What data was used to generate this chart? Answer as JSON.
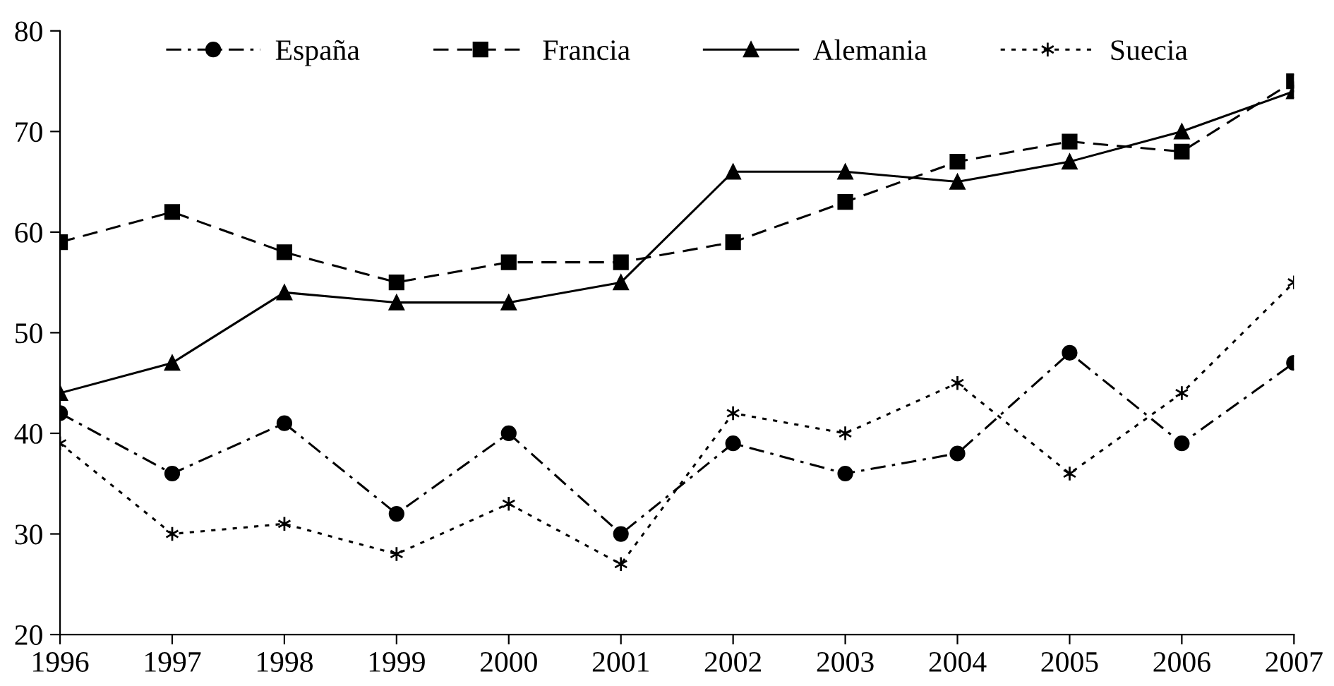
{
  "chart_data": {
    "type": "line",
    "x": [
      1996,
      1997,
      1998,
      1999,
      2000,
      2001,
      2002,
      2003,
      2004,
      2005,
      2006,
      2007
    ],
    "series": [
      {
        "name": "España",
        "color": "#000000",
        "marker": "circle",
        "line_style": "dashdot",
        "values": [
          42,
          36,
          41,
          32,
          40,
          30,
          39,
          36,
          38,
          48,
          39,
          47
        ]
      },
      {
        "name": "Francia",
        "color": "#000000",
        "marker": "square",
        "line_style": "dashed",
        "values": [
          59,
          62,
          58,
          55,
          57,
          57,
          59,
          63,
          67,
          69,
          68,
          75
        ]
      },
      {
        "name": "Alemania",
        "color": "#000000",
        "marker": "triangle",
        "line_style": "solid",
        "values": [
          44,
          47,
          54,
          53,
          53,
          55,
          66,
          66,
          65,
          67,
          70,
          74
        ]
      },
      {
        "name": "Suecia",
        "color": "#000000",
        "marker": "cross",
        "line_style": "dotted",
        "values": [
          39,
          30,
          31,
          28,
          33,
          27,
          42,
          40,
          45,
          36,
          44,
          55
        ]
      }
    ],
    "xlim": [
      1996,
      2007
    ],
    "xticks": [
      1996,
      1997,
      1998,
      1999,
      2000,
      2001,
      2002,
      2003,
      2004,
      2005,
      2006,
      2007
    ],
    "ylim": [
      20,
      80
    ],
    "yticks": [
      20,
      30,
      40,
      50,
      60,
      70,
      80
    ],
    "grid": false,
    "legend": "top"
  }
}
